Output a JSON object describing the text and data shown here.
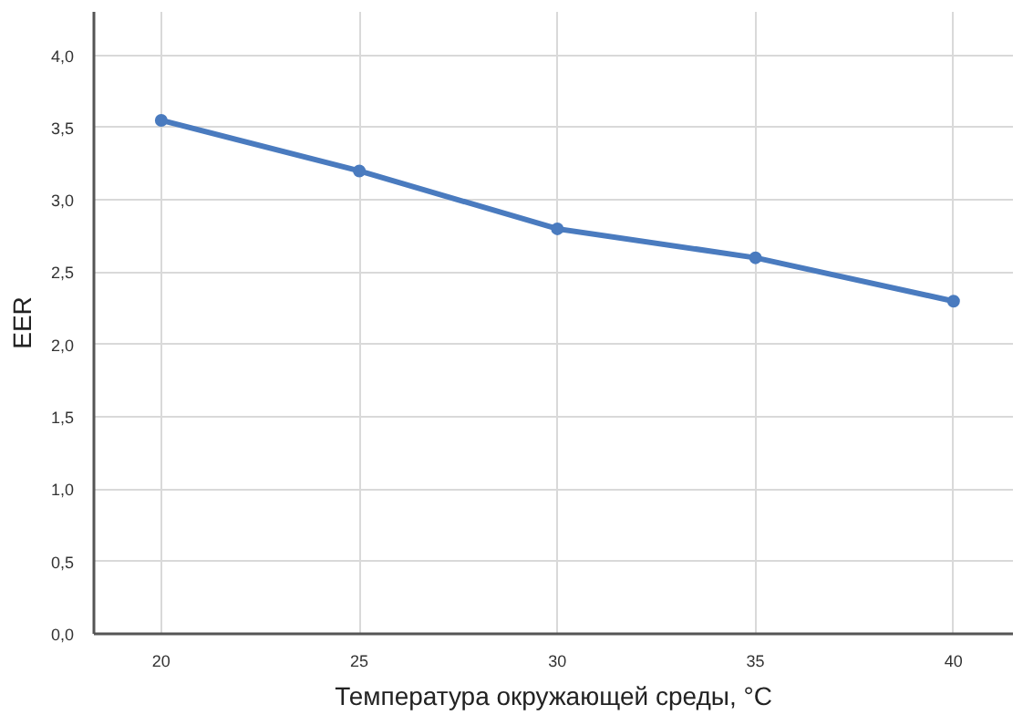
{
  "chart_data": {
    "type": "line",
    "xlabel": "Температура окружающей среды, °С",
    "ylabel": "EER",
    "x": [
      20,
      25,
      30,
      35,
      40
    ],
    "series": [
      {
        "color": "#4a7bbf",
        "values": [
          3.55,
          3.2,
          2.8,
          2.6,
          2.3
        ]
      }
    ],
    "xlim": [
      18.3,
      41.5
    ],
    "ylim": [
      0,
      4.3
    ],
    "xticks": [
      20,
      25,
      30,
      35,
      40
    ],
    "yticks": [
      {
        "value": 0,
        "label": "0,0"
      },
      {
        "value": 0.5,
        "label": "0,5"
      },
      {
        "value": 1,
        "label": "1,0"
      },
      {
        "value": 1.5,
        "label": "1,5"
      },
      {
        "value": 2,
        "label": "2,0"
      },
      {
        "value": 2.5,
        "label": "2,5"
      },
      {
        "value": 3,
        "label": "3,0"
      },
      {
        "value": 3.5,
        "label": "3,5"
      },
      {
        "value": 4,
        "label": "4,0"
      }
    ],
    "grid": true,
    "marker": "circle",
    "line_style": "solid"
  }
}
